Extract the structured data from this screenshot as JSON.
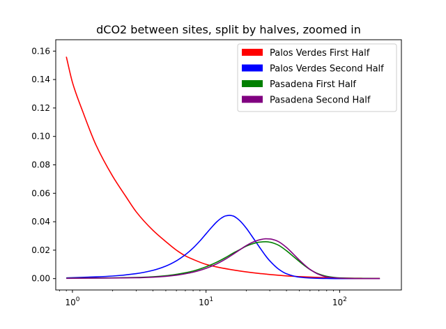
{
  "chart_data": {
    "type": "line",
    "title": "dCO2 between sites, split by halves, zoomed in",
    "xlabel": "",
    "ylabel": "",
    "x_scale": "log",
    "xlim": [
      0.75,
      290
    ],
    "ylim": [
      -0.008,
      0.168
    ],
    "x_ticks": [
      {
        "value": 1,
        "label": "10^0"
      },
      {
        "value": 10,
        "label": "10^1"
      },
      {
        "value": 100,
        "label": "10^2"
      }
    ],
    "y_ticks": [
      {
        "value": 0.0,
        "label": "0.00"
      },
      {
        "value": 0.02,
        "label": "0.02"
      },
      {
        "value": 0.04,
        "label": "0.04"
      },
      {
        "value": 0.06,
        "label": "0.06"
      },
      {
        "value": 0.08,
        "label": "0.08"
      },
      {
        "value": 0.1,
        "label": "0.10"
      },
      {
        "value": 0.12,
        "label": "0.12"
      },
      {
        "value": 0.14,
        "label": "0.14"
      },
      {
        "value": 0.16,
        "label": "0.16"
      }
    ],
    "grid": false,
    "legend_position": "top-right",
    "series": [
      {
        "name": "Palos Verdes First Half",
        "color": "#ff0000",
        "x": [
          0.9,
          1.0,
          1.2,
          1.5,
          2.0,
          2.5,
          3.0,
          4.0,
          5.0,
          6.0,
          7.0,
          8.0,
          10,
          12,
          15,
          20,
          25,
          30,
          40,
          50,
          70,
          100,
          150,
          200
        ],
        "y": [
          0.156,
          0.138,
          0.117,
          0.094,
          0.072,
          0.058,
          0.047,
          0.034,
          0.026,
          0.02,
          0.016,
          0.0135,
          0.01,
          0.0082,
          0.0065,
          0.0047,
          0.0036,
          0.0029,
          0.0019,
          0.0014,
          0.0008,
          0.0004,
          0.0002,
          0.0001
        ]
      },
      {
        "name": "Palos Verdes Second Half",
        "color": "#0000ff",
        "x": [
          0.9,
          1.5,
          2.0,
          3.0,
          4.0,
          5.0,
          6.0,
          7.0,
          8.0,
          9.0,
          10,
          11,
          12,
          13,
          14,
          15,
          16,
          17,
          18,
          20,
          22,
          25,
          28,
          30,
          35,
          40,
          50,
          60,
          70,
          80,
          100,
          150,
          200
        ],
        "y": [
          0.0005,
          0.0012,
          0.0018,
          0.0035,
          0.0058,
          0.0088,
          0.0125,
          0.0168,
          0.0215,
          0.0265,
          0.0315,
          0.036,
          0.0398,
          0.0425,
          0.0441,
          0.0445,
          0.044,
          0.0425,
          0.0405,
          0.0355,
          0.03,
          0.0224,
          0.0159,
          0.0125,
          0.0066,
          0.0034,
          0.001,
          0.0004,
          0.0002,
          0.0001,
          0.0,
          0.0,
          0.0
        ]
      },
      {
        "name": "Pasadena First Half",
        "color": "#008000",
        "x": [
          0.9,
          2.0,
          3.0,
          4.0,
          5.0,
          6.0,
          7.0,
          8.0,
          10,
          12,
          14,
          16,
          18,
          20,
          22,
          25,
          28,
          30,
          33,
          35,
          40,
          45,
          50,
          60,
          70,
          80,
          100,
          150,
          200
        ],
        "y": [
          0.0003,
          0.0005,
          0.0008,
          0.0013,
          0.002,
          0.003,
          0.0041,
          0.0053,
          0.0083,
          0.0115,
          0.0148,
          0.018,
          0.0205,
          0.0228,
          0.0243,
          0.0256,
          0.0259,
          0.0256,
          0.0245,
          0.0234,
          0.0196,
          0.0156,
          0.012,
          0.0064,
          0.0032,
          0.0016,
          0.0005,
          0.0001,
          0.0
        ]
      },
      {
        "name": "Pasadena Second Half",
        "color": "#800080",
        "x": [
          0.9,
          2.0,
          3.0,
          4.0,
          5.0,
          6.0,
          7.0,
          8.0,
          10,
          12,
          14,
          16,
          18,
          20,
          22,
          25,
          28,
          30,
          33,
          35,
          40,
          45,
          50,
          60,
          70,
          80,
          100,
          150,
          200
        ],
        "y": [
          0.0002,
          0.0004,
          0.0006,
          0.001,
          0.0016,
          0.0024,
          0.0034,
          0.0045,
          0.0072,
          0.0103,
          0.0137,
          0.0172,
          0.0204,
          0.0232,
          0.0253,
          0.0272,
          0.028,
          0.0279,
          0.027,
          0.0259,
          0.0219,
          0.0173,
          0.013,
          0.0065,
          0.0029,
          0.0012,
          0.0003,
          0.0,
          0.0
        ]
      }
    ]
  }
}
